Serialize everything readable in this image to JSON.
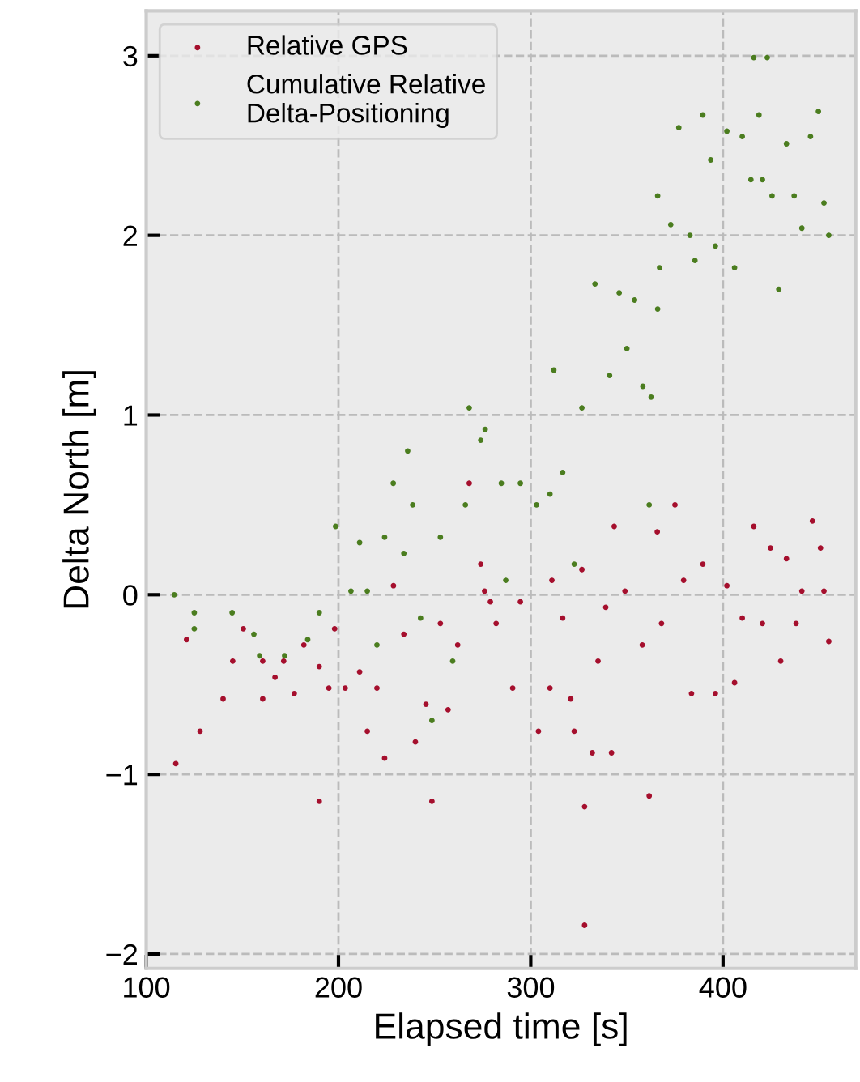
{
  "chart_data": {
    "type": "scatter",
    "xlabel": "Elapsed time [s]",
    "ylabel": "Delta North [m]",
    "xlim": [
      100,
      469
    ],
    "ylim": [
      -2.08,
      3.25
    ],
    "xticks": [
      100,
      200,
      300,
      400
    ],
    "yticks": [
      {
        "value": -2,
        "label": "−2"
      },
      {
        "value": -1,
        "label": "−1"
      },
      0,
      1,
      2,
      3
    ],
    "grid": true,
    "legend": "top left",
    "marker": "circle",
    "series": [
      {
        "name": "Relative GPS",
        "color": "#a50f2d",
        "x": [
          115.4,
          121,
          128,
          140,
          145,
          150.5,
          160.6,
          160.6,
          167,
          171.5,
          177,
          182,
          190,
          190,
          195,
          198,
          203.5,
          211,
          215,
          220,
          224,
          228.6,
          234,
          240,
          245.5,
          248.6,
          253,
          257,
          262,
          268,
          274,
          276,
          279,
          282,
          290.6,
          294.6,
          304,
          310,
          311,
          316.6,
          320.8,
          322.6,
          326.6,
          328,
          328,
          332,
          335,
          339,
          342,
          343.4,
          349,
          358,
          361.6,
          365.8,
          368,
          375,
          379.5,
          383.6,
          389.5,
          396,
          402,
          406,
          410,
          416,
          420.5,
          424.7,
          430,
          433,
          438,
          441,
          446.5,
          450.7,
          452.5,
          455
        ],
        "values": [
          -0.94,
          -0.25,
          -0.76,
          -0.58,
          -0.37,
          -0.19,
          -0.58,
          -0.37,
          -0.46,
          -0.37,
          -0.55,
          -0.28,
          -0.4,
          -1.15,
          -0.52,
          -0.19,
          -0.52,
          -0.43,
          -0.76,
          -0.52,
          -0.91,
          0.05,
          -0.22,
          -0.82,
          -0.61,
          -1.15,
          -0.16,
          -0.64,
          -0.28,
          0.62,
          0.17,
          0.02,
          -0.04,
          -0.16,
          -0.52,
          -0.04,
          -0.76,
          -0.52,
          0.08,
          -0.13,
          -0.58,
          -0.76,
          0.14,
          -1.18,
          -1.84,
          -0.88,
          -0.37,
          -0.07,
          -0.88,
          0.38,
          0.02,
          -0.28,
          -1.12,
          0.35,
          -0.16,
          0.5,
          0.08,
          -0.55,
          0.17,
          -0.55,
          0.05,
          -0.49,
          -0.13,
          0.38,
          -0.16,
          0.26,
          -0.37,
          0.2,
          -0.16,
          0.02,
          0.41,
          0.26,
          0.02,
          -0.26
        ]
      },
      {
        "name": "Cumulative Relative\nDelta-Positioning",
        "color": "#4b7d1f",
        "x": [
          114.6,
          125,
          125,
          144.7,
          156,
          159,
          172,
          184,
          190,
          198.5,
          206.5,
          211,
          215,
          220,
          224,
          228.5,
          234,
          236,
          238.6,
          242.7,
          248.6,
          253,
          259.4,
          266,
          268,
          274,
          276.3,
          284.7,
          287,
          294.6,
          303,
          310,
          312,
          316.6,
          322.6,
          326.6,
          333.4,
          341,
          346,
          350,
          354,
          358.3,
          361.6,
          362.6,
          366,
          367,
          366,
          372.8,
          377,
          382.8,
          385.4,
          389.5,
          393.6,
          396,
          402,
          406,
          410,
          414.5,
          416,
          418.7,
          420.5,
          423,
          425.5,
          429,
          433,
          437,
          441,
          445.5,
          449.6,
          452.5,
          455
        ],
        "values": [
          0.0,
          -0.1,
          -0.19,
          -0.1,
          -0.22,
          -0.34,
          -0.34,
          -0.25,
          -0.1,
          0.38,
          0.02,
          0.29,
          0.02,
          -0.28,
          0.32,
          0.62,
          0.23,
          0.8,
          0.5,
          -0.13,
          -0.7,
          0.32,
          -0.37,
          0.5,
          1.04,
          0.86,
          0.92,
          0.62,
          0.08,
          0.62,
          0.5,
          0.56,
          1.25,
          0.68,
          0.17,
          1.04,
          1.73,
          1.22,
          1.68,
          1.37,
          1.64,
          1.16,
          0.5,
          1.1,
          1.59,
          1.82,
          2.22,
          2.06,
          2.6,
          2.0,
          1.86,
          2.67,
          2.42,
          1.94,
          2.58,
          1.82,
          2.55,
          2.31,
          2.99,
          2.67,
          2.31,
          2.99,
          2.22,
          1.7,
          2.51,
          2.22,
          2.04,
          2.55,
          2.69,
          2.18,
          2.0
        ]
      }
    ]
  }
}
